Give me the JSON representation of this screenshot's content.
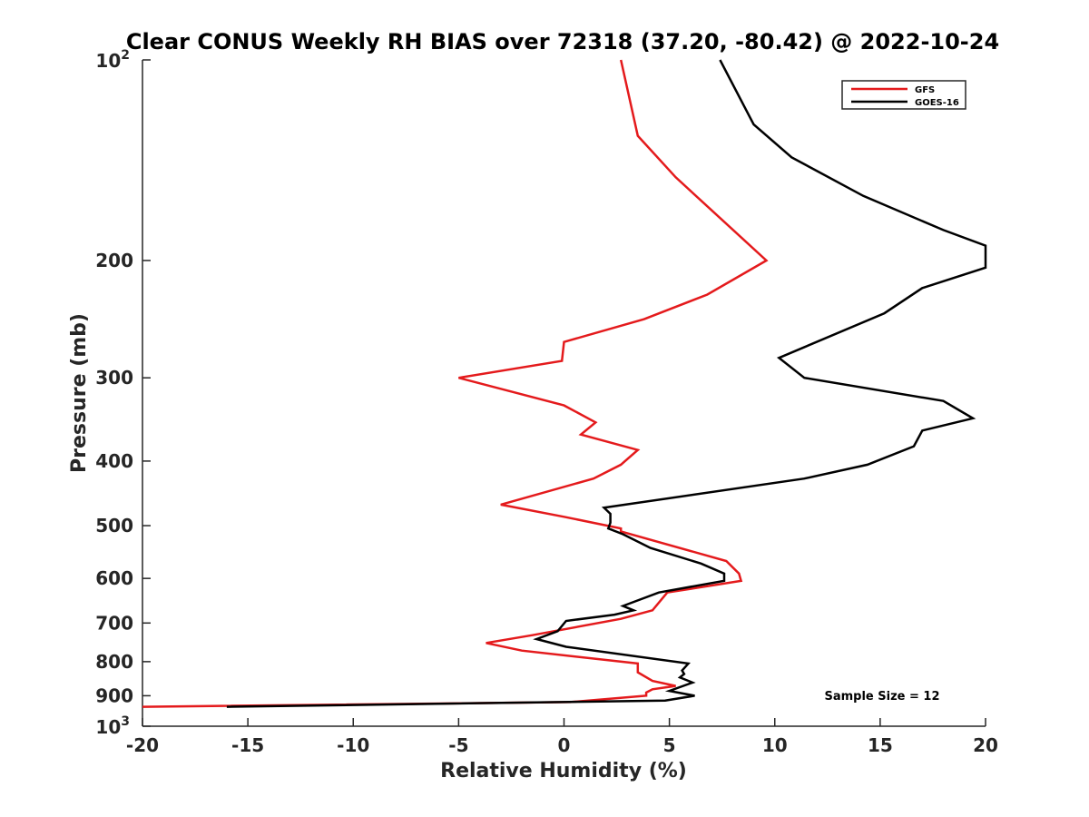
{
  "chart_data": {
    "type": "line",
    "title": "Clear CONUS Weekly RH BIAS over 72318 (37.20, -80.42) @ 2022-10-24",
    "xlabel": "Relative Humidity (%)",
    "ylabel": "Pressure (mb)",
    "xlim": [
      -20,
      20
    ],
    "ylim": [
      100,
      1000
    ],
    "y_scale": "log",
    "y_reversed": true,
    "x_ticks": [
      "-20",
      "-15",
      "-10",
      "-5",
      "0",
      "5",
      "10",
      "15",
      "20"
    ],
    "y_ticks": [
      {
        "value": 200,
        "label": "200"
      },
      {
        "value": 300,
        "label": "300"
      },
      {
        "value": 400,
        "label": "400"
      },
      {
        "value": 500,
        "label": "500"
      },
      {
        "value": 600,
        "label": "600"
      },
      {
        "value": 700,
        "label": "700"
      },
      {
        "value": 800,
        "label": "800"
      },
      {
        "value": 900,
        "label": "900"
      }
    ],
    "y_ticks_exponent": [
      {
        "value": 100,
        "base": "10",
        "exp": "2"
      },
      {
        "value": 1000,
        "base": "10",
        "exp": "3"
      }
    ],
    "grid": false,
    "legend_position": "top-right",
    "series": [
      {
        "name": "GFS",
        "color": "#e41a1c",
        "points": [
          [
            2.7,
            100
          ],
          [
            3.5,
            130
          ],
          [
            5.3,
            150
          ],
          [
            9.6,
            200
          ],
          [
            6.8,
            225
          ],
          [
            3.8,
            245
          ],
          [
            0.0,
            265
          ],
          [
            -0.1,
            283
          ],
          [
            -5.0,
            300
          ],
          [
            0.0,
            330
          ],
          [
            1.5,
            350
          ],
          [
            0.8,
            365
          ],
          [
            3.5,
            385
          ],
          [
            2.7,
            405
          ],
          [
            1.4,
            425
          ],
          [
            -3.0,
            465
          ],
          [
            0.0,
            485
          ],
          [
            2.7,
            505
          ],
          [
            2.7,
            510
          ],
          [
            7.7,
            565
          ],
          [
            8.3,
            590
          ],
          [
            8.4,
            605
          ],
          [
            4.9,
            630
          ],
          [
            4.2,
            670
          ],
          [
            2.7,
            690
          ],
          [
            -1.5,
            730
          ],
          [
            -3.7,
            750
          ],
          [
            -2.0,
            770
          ],
          [
            3.5,
            805
          ],
          [
            3.5,
            830
          ],
          [
            4.2,
            855
          ],
          [
            5.3,
            870
          ],
          [
            4.2,
            880
          ],
          [
            3.9,
            890
          ],
          [
            3.9,
            900
          ],
          [
            0.3,
            920
          ],
          [
            -20.0,
            935
          ]
        ]
      },
      {
        "name": "GOES-16",
        "color": "#000000",
        "points": [
          [
            7.4,
            100
          ],
          [
            9.0,
            125
          ],
          [
            10.8,
            140
          ],
          [
            14.2,
            160
          ],
          [
            18.0,
            180
          ],
          [
            20.0,
            190
          ],
          [
            20.0,
            205
          ],
          [
            17.0,
            220
          ],
          [
            15.2,
            240
          ],
          [
            10.2,
            280
          ],
          [
            11.4,
            300
          ],
          [
            18.0,
            325
          ],
          [
            19.4,
            345
          ],
          [
            17.0,
            360
          ],
          [
            16.6,
            380
          ],
          [
            14.4,
            405
          ],
          [
            11.4,
            425
          ],
          [
            1.9,
            470
          ],
          [
            2.2,
            480
          ],
          [
            2.2,
            495
          ],
          [
            2.1,
            505
          ],
          [
            2.8,
            515
          ],
          [
            4.1,
            540
          ],
          [
            6.5,
            570
          ],
          [
            7.6,
            590
          ],
          [
            7.6,
            605
          ],
          [
            4.5,
            630
          ],
          [
            2.8,
            660
          ],
          [
            3.3,
            670
          ],
          [
            2.4,
            680
          ],
          [
            0.1,
            695
          ],
          [
            -0.3,
            720
          ],
          [
            -1.3,
            740
          ],
          [
            0.1,
            760
          ],
          [
            5.9,
            805
          ],
          [
            5.6,
            825
          ],
          [
            5.7,
            835
          ],
          [
            5.5,
            845
          ],
          [
            6.1,
            860
          ],
          [
            5.0,
            885
          ],
          [
            6.2,
            900
          ],
          [
            4.8,
            915
          ],
          [
            -16.0,
            935
          ]
        ]
      }
    ],
    "annotation": "Sample Size = 12"
  }
}
